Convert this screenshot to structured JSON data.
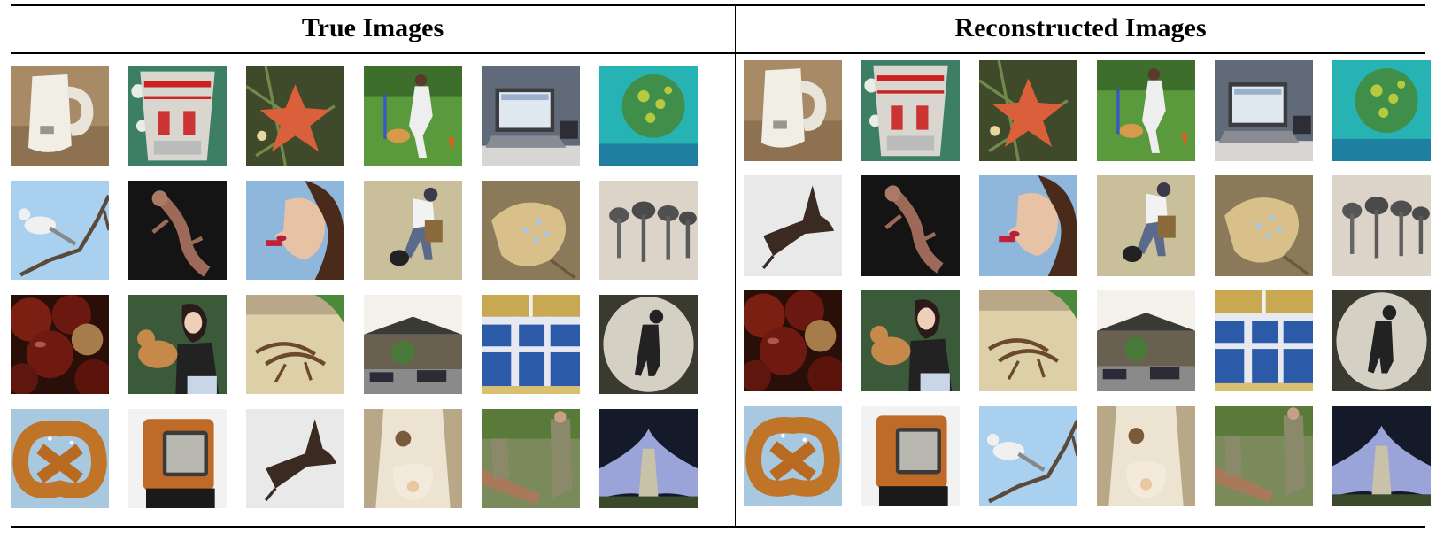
{
  "headers": {
    "left": "True Images",
    "right": "Reconstructed Images"
  },
  "true_images": [
    [
      "kettle",
      "coffee-cup",
      "starfish",
      "girl-with-dog",
      "laptop",
      "coral-reef"
    ],
    [
      "white-bird-on-branch",
      "lizard",
      "woman-with-lipstick",
      "man-with-bucket",
      "stingray",
      "dark-mushrooms"
    ],
    [
      "chestnuts",
      "woman-with-dog",
      "wooden-sled",
      "houses-and-cars",
      "plaid-blanket",
      "black-dog"
    ],
    [
      "pretzel",
      "retro-tv",
      "flying-bird",
      "baby-crib",
      "soldiers",
      "purple-starfish"
    ]
  ],
  "reconstructed_images": [
    [
      "kettle",
      "coffee-cup",
      "starfish",
      "girl-with-dog",
      "laptop",
      "coral-reef"
    ],
    [
      "flying-bird",
      "lizard",
      "woman-with-lipstick",
      "man-with-bucket",
      "stingray",
      "dark-mushrooms"
    ],
    [
      "chestnuts",
      "woman-with-dog",
      "wooden-sled",
      "houses-and-cars",
      "plaid-blanket",
      "black-dog"
    ],
    [
      "pretzel",
      "retro-tv",
      "white-bird-on-branch",
      "baby-crib",
      "soldiers",
      "purple-starfish"
    ]
  ]
}
